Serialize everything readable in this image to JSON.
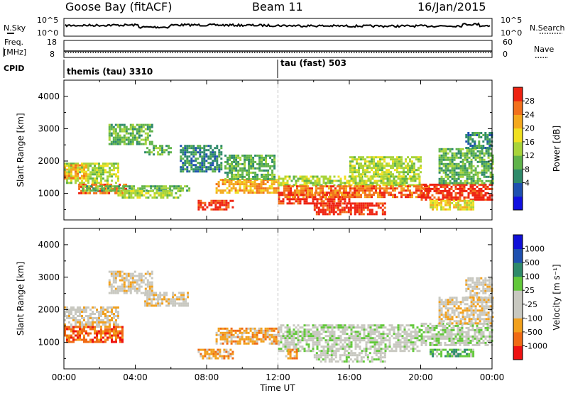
{
  "header": {
    "station": "Goose Bay (fitACF)",
    "beam": "Beam 11",
    "date": "16/Jan/2015"
  },
  "strips": {
    "nsky": {
      "label": "N.Sky",
      "ticks": [
        "10^5",
        "10^0"
      ]
    },
    "nsearch": {
      "label": "N.Search",
      "ticks": [
        "10^5",
        "10^0"
      ]
    },
    "freq": {
      "label_line1": "Freq.",
      "label_line2": "[MHz]",
      "ticks": [
        "18",
        "8"
      ]
    },
    "nave": {
      "label": "Nave",
      "ticks": [
        "60",
        "0"
      ]
    },
    "cpid": {
      "label": "CPID",
      "segments": [
        {
          "name": "themis (tau) 3310",
          "start_hour": 0
        },
        {
          "name": "tau (fast) 503",
          "start_hour": 12
        }
      ]
    }
  },
  "time_axis": {
    "label": "Time UT",
    "ticks": [
      "00:00",
      "04:00",
      "08:00",
      "12:00",
      "16:00",
      "20:00",
      "00:00"
    ]
  },
  "chart_data": [
    {
      "type": "heatmap",
      "name": "power",
      "ylabel": "Slant Range [km]",
      "yticks": [
        "4000",
        "3000",
        "2000",
        "1000"
      ],
      "ylim": [
        180,
        4500
      ],
      "x_hours": [
        0,
        24
      ],
      "colorbar": {
        "label": "Power [dB]",
        "ticks": [
          "28",
          "24",
          "20",
          "16",
          "12",
          "8",
          "4"
        ],
        "colors": [
          "#1010e0",
          "#1e50b0",
          "#2e8a6a",
          "#5fb34a",
          "#a8d43a",
          "#f0e020",
          "#f4a81d",
          "#f2701c",
          "#ee2211"
        ]
      },
      "regions": [
        {
          "t0": 0.0,
          "t1": 3.0,
          "r0": 1300,
          "r1": 1950,
          "level": 4
        },
        {
          "t0": 0.8,
          "t1": 3.5,
          "r0": 1000,
          "r1": 1300,
          "level": 7
        },
        {
          "t0": 0.0,
          "t1": 1.2,
          "r0": 1500,
          "r1": 1900,
          "level": 6
        },
        {
          "t0": 2.5,
          "t1": 5.0,
          "r0": 2500,
          "r1": 3150,
          "level": 3
        },
        {
          "t0": 4.5,
          "t1": 6.0,
          "r0": 2200,
          "r1": 2500,
          "level": 3
        },
        {
          "t0": 1.0,
          "t1": 7.0,
          "r0": 1100,
          "r1": 1250,
          "level": 3
        },
        {
          "t0": 3.0,
          "t1": 6.5,
          "r0": 900,
          "r1": 1100,
          "level": 4
        },
        {
          "t0": 7.5,
          "t1": 9.5,
          "r0": 500,
          "r1": 800,
          "level": 8
        },
        {
          "t0": 8.5,
          "t1": 12.0,
          "r0": 1000,
          "r1": 1450,
          "level": 6
        },
        {
          "t0": 9.0,
          "t1": 11.8,
          "r0": 1450,
          "r1": 2200,
          "level": 3
        },
        {
          "t0": 12.0,
          "t1": 20.0,
          "r0": 1250,
          "r1": 1550,
          "level": 4
        },
        {
          "t0": 12.0,
          "t1": 16.0,
          "r0": 700,
          "r1": 1050,
          "level": 8
        },
        {
          "t0": 12.3,
          "t1": 20.5,
          "r0": 900,
          "r1": 1250,
          "level": 7
        },
        {
          "t0": 14.0,
          "t1": 18.0,
          "r0": 380,
          "r1": 720,
          "level": 8
        },
        {
          "t0": 16.0,
          "t1": 20.0,
          "r0": 1550,
          "r1": 2150,
          "level": 4
        },
        {
          "t0": 20.0,
          "t1": 24.0,
          "r0": 800,
          "r1": 1300,
          "level": 8
        },
        {
          "t0": 21.0,
          "t1": 24.0,
          "r0": 1300,
          "r1": 2400,
          "level": 3
        },
        {
          "t0": 22.5,
          "t1": 24.0,
          "r0": 2400,
          "r1": 2900,
          "level": 2
        },
        {
          "t0": 6.5,
          "t1": 8.8,
          "r0": 1700,
          "r1": 2500,
          "level": 2
        },
        {
          "t0": 20.5,
          "t1": 23.0,
          "r0": 500,
          "r1": 800,
          "level": 5
        }
      ]
    },
    {
      "type": "heatmap",
      "name": "velocity",
      "ylabel": "Slant Range [km]",
      "yticks": [
        "4000",
        "3000",
        "2000",
        "1000"
      ],
      "ylim": [
        180,
        4500
      ],
      "x_hours": [
        0,
        24
      ],
      "colorbar": {
        "label": "Velocity [m s⁻¹]",
        "ticks": [
          "1000",
          "500",
          "100",
          "25",
          "-25",
          "-100",
          "-500",
          "-1000"
        ],
        "colors": [
          "#ee1111",
          "#f06a14",
          "#f2a01c",
          "#c8c8c0",
          "#c8c8c0",
          "#62c83a",
          "#2e8a6a",
          "#1e50b0",
          "#1010d8"
        ]
      },
      "regions": [
        {
          "t0": 0.0,
          "t1": 3.0,
          "r0": 1500,
          "r1": 2100,
          "level": 3
        },
        {
          "t0": 0.0,
          "t1": 3.3,
          "r0": 1000,
          "r1": 1500,
          "level": 1
        },
        {
          "t0": 2.5,
          "t1": 5.0,
          "r0": 2500,
          "r1": 3200,
          "level": 3
        },
        {
          "t0": 4.5,
          "t1": 7.0,
          "r0": 2100,
          "r1": 2550,
          "level": 3
        },
        {
          "t0": 7.5,
          "t1": 9.5,
          "r0": 500,
          "r1": 800,
          "level": 2
        },
        {
          "t0": 8.5,
          "t1": 12.0,
          "r0": 950,
          "r1": 1450,
          "level": 2
        },
        {
          "t0": 12.0,
          "t1": 20.0,
          "r0": 700,
          "r1": 1550,
          "level": 4
        },
        {
          "t0": 14.0,
          "t1": 18.0,
          "r0": 400,
          "r1": 700,
          "level": 4
        },
        {
          "t0": 20.0,
          "t1": 24.0,
          "r0": 900,
          "r1": 1600,
          "level": 4
        },
        {
          "t0": 21.0,
          "t1": 24.0,
          "r0": 1600,
          "r1": 2400,
          "level": 3
        },
        {
          "t0": 22.5,
          "t1": 24.0,
          "r0": 2400,
          "r1": 3000,
          "level": 3
        },
        {
          "t0": 20.5,
          "t1": 23.0,
          "r0": 550,
          "r1": 800,
          "level": 5
        },
        {
          "t0": 12.4,
          "t1": 13.0,
          "r0": 500,
          "r1": 800,
          "level": 2
        }
      ]
    }
  ]
}
